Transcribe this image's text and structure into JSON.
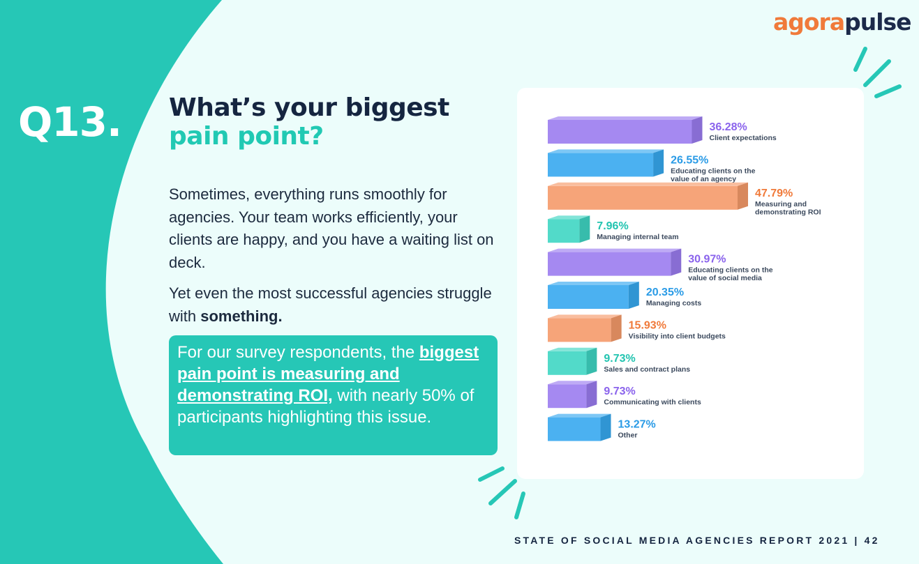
{
  "brand": {
    "part1": "agora",
    "part2": "pulse"
  },
  "question": {
    "number": "Q13.",
    "title_line1": "What’s your biggest",
    "title_line2": "pain point?"
  },
  "body": {
    "paragraph1": "Sometimes, everything runs smoothly for agencies. Your team works efficiently, your clients are happy, and you have a waiting list on deck.",
    "paragraph2_prefix": "Yet even the most successful agencies struggle with ",
    "paragraph2_bold": "something."
  },
  "callout": {
    "prefix": "For our survey respondents, the ",
    "highlight": "biggest pain point is measuring and demonstrating ROI,",
    "suffix": " with nearly 50% of participants highlighting this issue."
  },
  "footer": {
    "text": "STATE OF SOCIAL MEDIA AGENCIES REPORT 2021 | 42"
  },
  "colors": {
    "teal": "#26c7b6",
    "navy": "#152540",
    "orange": "#f07a3a",
    "purple": "#9b7cf0",
    "blue": "#37a9f0",
    "background": "#ecfdfb"
  },
  "chart_data": {
    "type": "bar",
    "orientation": "horizontal",
    "style": "3d",
    "unit": "%",
    "categories": [
      "Client expectations",
      "Educating clients on the value of an agency",
      "Measuring and demonstrating ROI",
      "Managing internal team",
      "Educating clients on the value of social media",
      "Managing costs",
      "Visibility into client budgets",
      "Sales and contract plans",
      "Communicating with clients",
      "Other"
    ],
    "label_lines": [
      [
        "Client expectations"
      ],
      [
        "Educating clients on the",
        "value of an agency"
      ],
      [
        "Measuring and",
        "demonstrating ROI"
      ],
      [
        "Managing internal team"
      ],
      [
        "Educating clients on the",
        "value of social media"
      ],
      [
        "Managing costs"
      ],
      [
        "Visibility into client budgets"
      ],
      [
        "Sales and contract plans"
      ],
      [
        "Communicating with clients"
      ],
      [
        "Other"
      ]
    ],
    "values": [
      36.28,
      26.55,
      47.79,
      7.96,
      30.97,
      20.35,
      15.93,
      9.73,
      9.73,
      13.27
    ],
    "value_labels": [
      "36.28%",
      "26.55%",
      "47.79%",
      "7.96%",
      "30.97%",
      "20.35%",
      "15.93%",
      "9.73%",
      "9.73%",
      "13.27%"
    ],
    "bar_colors": [
      "#9b7cf0",
      "#37a9f0",
      "#f59a6a",
      "#3fd6c3",
      "#9b7cf0",
      "#37a9f0",
      "#f59a6a",
      "#3fd6c3",
      "#9b7cf0",
      "#37a9f0"
    ],
    "label_colors": [
      "#8a63ec",
      "#2a9be6",
      "#f07a3a",
      "#22c4b0",
      "#8a63ec",
      "#2a9be6",
      "#f07a3a",
      "#22c4b0",
      "#8a63ec",
      "#2a9be6"
    ],
    "xlim": [
      0,
      47.79
    ]
  }
}
